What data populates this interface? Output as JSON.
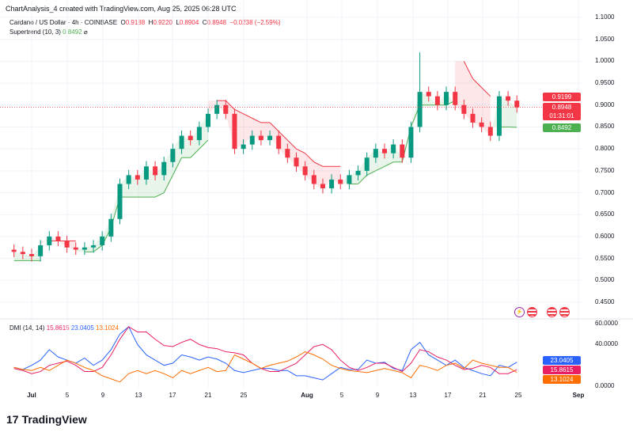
{
  "header": {
    "caption": "ChartAnalysis_4 created with TradingView.com, Aug 25, 2025 06:28 UTC"
  },
  "legend": {
    "symbol": "Cardano / US Dollar · 4h · COINBASE",
    "o_label": "O",
    "o": "0.9188",
    "h_label": "H",
    "h": "0.9220",
    "l_label": "L",
    "l": "0.8904",
    "c_label": "C",
    "c": "0.8948",
    "change": "−0.0238 (−2.59%)",
    "supertrend_name": "Supertrend (10, 3)",
    "supertrend_value": "0.8492",
    "supertrend_icon": "eye-off-icon"
  },
  "dmi_legend": {
    "name": "DMI (14, 14)",
    "v1": "15.8615",
    "v2": "23.0405",
    "v3": "13.1024"
  },
  "price_labels": {
    "high_marker": "0.9199",
    "last": "0.8948",
    "countdown": "01:31:01",
    "supertrend": "0.8492"
  },
  "dmi_labels": {
    "blue": "23.0405",
    "pink": "15.8615",
    "orange": "13.1024"
  },
  "logo": "TradingView",
  "colors": {
    "up": "#089981",
    "down": "#f23645",
    "st_up": "#4caf50",
    "st_down": "#f23645",
    "blue": "#2962ff",
    "pink": "#e91e63",
    "orange": "#ff6d00"
  },
  "chart_data": [
    {
      "type": "candlestick",
      "title": "Cardano / US Dollar · 4h · COINBASE",
      "yticks": [
        "1.1000",
        "1.0500",
        "1.0000",
        "0.9500",
        "0.9000",
        "0.8500",
        "0.8000",
        "0.7500",
        "0.7000",
        "0.6500",
        "0.6000",
        "0.5500",
        "0.5000",
        "0.4500"
      ],
      "ylim": [
        0.45,
        1.1
      ],
      "xticks": [
        "Jul",
        "5",
        "9",
        "13",
        "17",
        "21",
        "25",
        "Aug",
        "5",
        "9",
        "13",
        "17",
        "21",
        "25",
        "Sep"
      ],
      "x": [
        "06-29",
        "06-30",
        "07-01",
        "07-02",
        "07-03",
        "07-04",
        "07-05",
        "07-06",
        "07-07",
        "07-08",
        "07-09",
        "07-10",
        "07-11",
        "07-12",
        "07-13",
        "07-14",
        "07-15",
        "07-16",
        "07-17",
        "07-18",
        "07-19",
        "07-20",
        "07-21",
        "07-22",
        "07-23",
        "07-24",
        "07-25",
        "07-26",
        "07-27",
        "07-28",
        "07-29",
        "07-30",
        "07-31",
        "08-01",
        "08-02",
        "08-03",
        "08-04",
        "08-05",
        "08-06",
        "08-07",
        "08-08",
        "08-09",
        "08-10",
        "08-11",
        "08-12",
        "08-13",
        "08-14",
        "08-15",
        "08-16",
        "08-17",
        "08-18",
        "08-19",
        "08-20",
        "08-21",
        "08-22",
        "08-23",
        "08-24",
        "08-25"
      ],
      "close": [
        0.565,
        0.56,
        0.555,
        0.58,
        0.6,
        0.59,
        0.575,
        0.57,
        0.575,
        0.58,
        0.6,
        0.64,
        0.72,
        0.74,
        0.73,
        0.76,
        0.74,
        0.77,
        0.8,
        0.83,
        0.82,
        0.85,
        0.88,
        0.9,
        0.88,
        0.8,
        0.81,
        0.83,
        0.82,
        0.83,
        0.8,
        0.78,
        0.76,
        0.74,
        0.72,
        0.71,
        0.73,
        0.72,
        0.74,
        0.75,
        0.78,
        0.8,
        0.79,
        0.81,
        0.78,
        0.85,
        0.93,
        0.92,
        0.9,
        0.93,
        0.9,
        0.88,
        0.86,
        0.85,
        0.83,
        0.92,
        0.91,
        0.8948
      ],
      "supertrend": [
        0.545,
        0.545,
        0.545,
        0.545,
        0.59,
        0.59,
        0.59,
        0.59,
        0.565,
        0.565,
        0.58,
        0.62,
        0.69,
        0.69,
        0.69,
        0.69,
        0.69,
        0.7,
        0.74,
        0.78,
        0.78,
        0.8,
        0.82,
        0.91,
        0.91,
        0.89,
        0.88,
        0.87,
        0.86,
        0.86,
        0.84,
        0.82,
        0.8,
        0.79,
        0.77,
        0.76,
        0.76,
        0.76,
        0.72,
        0.72,
        0.74,
        0.75,
        0.76,
        0.77,
        0.77,
        0.85,
        0.9,
        0.9,
        0.9,
        0.9,
        0.91,
        1.0,
        0.96,
        0.94,
        0.92,
        0.85,
        0.85,
        0.8492
      ],
      "supertrend_dir": [
        "up",
        "up",
        "up",
        "up",
        "down",
        "down",
        "down",
        "down",
        "up",
        "up",
        "up",
        "up",
        "up",
        "up",
        "up",
        "up",
        "up",
        "up",
        "up",
        "up",
        "up",
        "up",
        "up",
        "down",
        "down",
        "down",
        "down",
        "down",
        "down",
        "down",
        "down",
        "down",
        "down",
        "down",
        "down",
        "down",
        "down",
        "down",
        "up",
        "up",
        "up",
        "up",
        "up",
        "up",
        "up",
        "up",
        "up",
        "up",
        "up",
        "up",
        "up",
        "down",
        "down",
        "down",
        "down",
        "up",
        "up",
        "up"
      ],
      "last_price": 0.8948
    },
    {
      "type": "line",
      "title": "DMI (14, 14)",
      "yticks": [
        "60.0000",
        "40.0000",
        "0.0000"
      ],
      "ylim": [
        0,
        60
      ],
      "series": [
        {
          "name": "23.0405",
          "color": "#2962ff",
          "values": [
            18,
            16,
            20,
            25,
            35,
            28,
            25,
            22,
            27,
            20,
            25,
            35,
            50,
            57,
            40,
            30,
            25,
            20,
            22,
            30,
            28,
            25,
            28,
            26,
            22,
            15,
            13,
            15,
            17,
            17,
            15,
            15,
            10,
            10,
            8,
            6,
            12,
            18,
            16,
            16,
            25,
            22,
            23,
            17,
            15,
            35,
            42,
            30,
            25,
            20,
            25,
            18,
            15,
            12,
            10,
            20,
            18,
            23.04
          ]
        },
        {
          "name": "15.8615",
          "color": "#e91e63",
          "values": [
            17,
            15,
            12,
            14,
            20,
            22,
            24,
            20,
            14,
            14,
            18,
            30,
            45,
            57,
            52,
            52,
            45,
            39,
            38,
            42,
            45,
            40,
            37,
            36,
            33,
            32,
            30,
            22,
            17,
            14,
            14,
            18,
            22,
            30,
            38,
            40,
            35,
            25,
            18,
            15,
            18,
            22,
            22,
            18,
            14,
            22,
            35,
            33,
            28,
            25,
            20,
            16,
            17,
            20,
            18,
            12,
            12,
            15.86
          ]
        },
        {
          "name": "13.1024",
          "color": "#ff6d00",
          "values": [
            18,
            16,
            15,
            18,
            15,
            20,
            25,
            22,
            18,
            15,
            10,
            7,
            4,
            12,
            15,
            12,
            15,
            12,
            8,
            15,
            12,
            15,
            18,
            14,
            15,
            30,
            26,
            22,
            17,
            20,
            22,
            24,
            28,
            33,
            30,
            26,
            20,
            17,
            15,
            14,
            13,
            15,
            17,
            15,
            13,
            8,
            20,
            18,
            15,
            20,
            22,
            17,
            25,
            22,
            20,
            18,
            18,
            13.1
          ]
        }
      ]
    }
  ]
}
